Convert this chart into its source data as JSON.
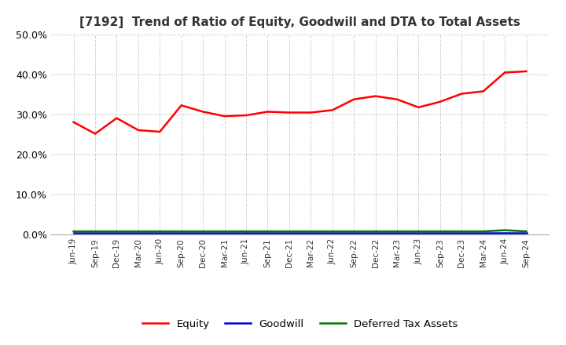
{
  "title": "[7192]  Trend of Ratio of Equity, Goodwill and DTA to Total Assets",
  "title_fontsize": 11,
  "ylim": [
    0.0,
    0.5
  ],
  "yticks": [
    0.0,
    0.1,
    0.2,
    0.3,
    0.4,
    0.5
  ],
  "background_color": "#ffffff",
  "plot_bg_color": "#ffffff",
  "grid_color": "#aaaaaa",
  "x_labels": [
    "Jun-19",
    "Sep-19",
    "Dec-19",
    "Mar-20",
    "Jun-20",
    "Sep-20",
    "Dec-20",
    "Mar-21",
    "Jun-21",
    "Sep-21",
    "Dec-21",
    "Mar-22",
    "Jun-22",
    "Sep-22",
    "Dec-22",
    "Mar-23",
    "Jun-23",
    "Sep-23",
    "Dec-23",
    "Mar-24",
    "Jun-24",
    "Sep-24"
  ],
  "equity": [
    0.281,
    0.252,
    0.291,
    0.261,
    0.257,
    0.323,
    0.307,
    0.296,
    0.298,
    0.307,
    0.305,
    0.305,
    0.311,
    0.338,
    0.346,
    0.338,
    0.318,
    0.332,
    0.352,
    0.358,
    0.405,
    0.408
  ],
  "goodwill": [
    0.005,
    0.005,
    0.005,
    0.005,
    0.005,
    0.005,
    0.005,
    0.005,
    0.005,
    0.005,
    0.005,
    0.005,
    0.005,
    0.005,
    0.005,
    0.005,
    0.005,
    0.005,
    0.005,
    0.005,
    0.005,
    0.005
  ],
  "dta": [
    0.008,
    0.008,
    0.008,
    0.008,
    0.008,
    0.008,
    0.008,
    0.008,
    0.008,
    0.008,
    0.008,
    0.008,
    0.008,
    0.008,
    0.008,
    0.008,
    0.008,
    0.008,
    0.008,
    0.008,
    0.011,
    0.008
  ],
  "equity_color": "#ff0000",
  "goodwill_color": "#0000cc",
  "dta_color": "#007700",
  "legend_labels": [
    "Equity",
    "Goodwill",
    "Deferred Tax Assets"
  ]
}
